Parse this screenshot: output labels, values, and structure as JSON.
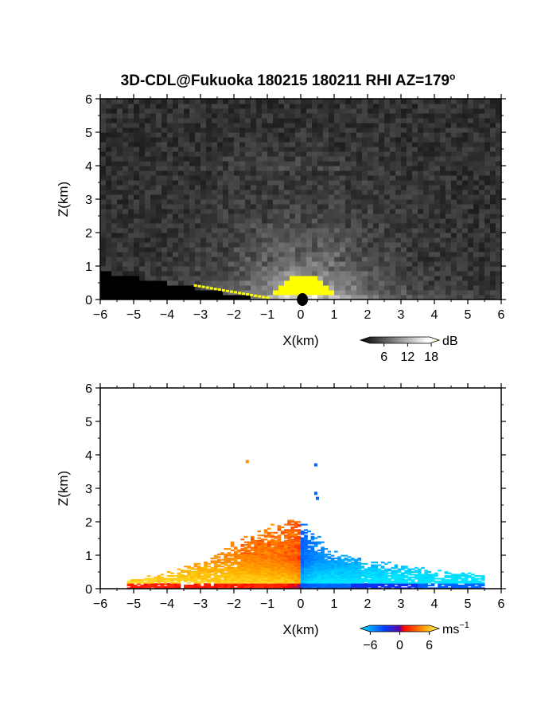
{
  "figure": {
    "title": "3D-CDL@Fukuoka 180215 180211 RHI AZ=179",
    "title_superscript": "o"
  },
  "chart_data": [
    {
      "type": "heatmap",
      "panel": "reflectivity",
      "xlabel": "X(km)",
      "ylabel": "Z(km)",
      "xlim": [
        -6,
        6
      ],
      "ylim": [
        0,
        6
      ],
      "xticks": [
        "-6",
        "-5",
        "-4",
        "-3",
        "-2",
        "-1",
        "0",
        "1",
        "2",
        "3",
        "4",
        "5",
        "6"
      ],
      "yticks": [
        "0",
        "1",
        "2",
        "3",
        "4",
        "5",
        "6"
      ],
      "colorbar": {
        "unit": "dB",
        "ticks": [
          "6",
          "12",
          "18"
        ],
        "range": [
          0,
          20
        ],
        "colors": [
          "#000000",
          "#ffffff",
          "#ffff00"
        ]
      },
      "features": {
        "background_level_dB": 2,
        "saturated_core": {
          "x_range_km": [
            -0.8,
            1.0
          ],
          "z_top_km": 0.75
        },
        "ray_fan_top_km": 2.2,
        "faint_layer_km": [
          3.8,
          4.4
        ],
        "ground_line": {
          "x_km": [
            -6,
            -1
          ],
          "z_km": [
            0.85,
            0.0
          ]
        }
      }
    },
    {
      "type": "heatmap",
      "panel": "doppler_velocity",
      "xlabel": "X(km)",
      "ylabel": "Z(km)",
      "xlim": [
        -6,
        6
      ],
      "ylim": [
        0,
        6
      ],
      "xticks": [
        "-6",
        "-5",
        "-4",
        "-3",
        "-2",
        "-1",
        "0",
        "1",
        "2",
        "3",
        "4",
        "5",
        "6"
      ],
      "yticks": [
        "0",
        "1",
        "2",
        "3",
        "4",
        "5",
        "6"
      ],
      "colorbar": {
        "unit": "ms",
        "unit_superscript": "−1",
        "ticks": [
          "−6",
          "0",
          "6"
        ],
        "range": [
          -8,
          8
        ],
        "colors": [
          "#00e5ff",
          "#0040ff",
          "#ff0000",
          "#ff8c00",
          "#ffff66"
        ]
      },
      "features": {
        "echo_extent_km": {
          "x": [
            -5.2,
            5.5
          ],
          "z_max": 2.0
        },
        "isolated_pixels": [
          {
            "x": -1.6,
            "z": 3.8,
            "v": 4
          },
          {
            "x": 0.45,
            "z": 3.7,
            "v": -4
          },
          {
            "x": 0.45,
            "z": 2.85,
            "v": -4
          },
          {
            "x": 0.5,
            "z": 2.7,
            "v": -4
          }
        ]
      }
    }
  ]
}
